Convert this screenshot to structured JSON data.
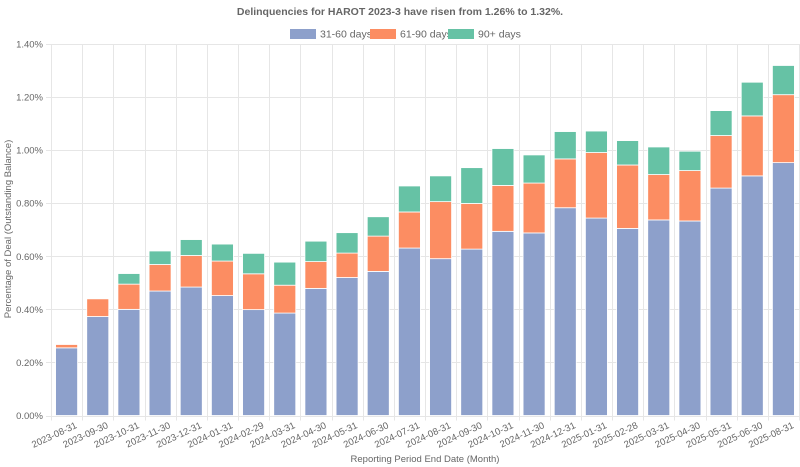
{
  "chart_data": {
    "type": "bar",
    "stacked": true,
    "title": "Delinquencies for HAROT 2023-3 have risen from 1.26% to 1.32%.",
    "xlabel": "Reporting Period End Date (Month)",
    "ylabel": "Percentage of Deal (Outstanding Balance)",
    "ylim": [
      0,
      1.4
    ],
    "yticks": [
      0,
      0.2,
      0.4,
      0.6,
      0.8,
      1.0,
      1.2,
      1.4
    ],
    "ytick_labels": [
      "0.00%",
      "0.20%",
      "0.40%",
      "0.60%",
      "0.80%",
      "1.00%",
      "1.20%",
      "1.40%"
    ],
    "grid": true,
    "legend_position": "top-center",
    "categories": [
      "2023-08-31",
      "2023-09-30",
      "2023-10-31",
      "2023-11-30",
      "2023-12-31",
      "2024-01-31",
      "2024-02-29",
      "2024-03-31",
      "2024-04-30",
      "2024-05-31",
      "2024-06-30",
      "2024-07-31",
      "2024-08-31",
      "2024-09-30",
      "2024-10-31",
      "2024-11-30",
      "2024-12-31",
      "2025-01-31",
      "2025-02-28",
      "2025-03-31",
      "2025-04-30",
      "2025-05-31",
      "2025-06-30",
      "2025-08-31"
    ],
    "series": [
      {
        "name": "31-60 days",
        "color": "#8da0cb",
        "values": [
          0.255,
          0.373,
          0.4,
          0.469,
          0.484,
          0.452,
          0.399,
          0.386,
          0.479,
          0.52,
          0.543,
          0.631,
          0.591,
          0.627,
          0.694,
          0.688,
          0.783,
          0.744,
          0.705,
          0.737,
          0.733,
          0.857,
          0.903,
          0.953
        ]
      },
      {
        "name": "61-90 days",
        "color": "#fc8d62",
        "values": [
          0.013,
          0.067,
          0.095,
          0.1,
          0.119,
          0.13,
          0.135,
          0.105,
          0.101,
          0.092,
          0.133,
          0.136,
          0.215,
          0.172,
          0.173,
          0.188,
          0.184,
          0.247,
          0.239,
          0.171,
          0.19,
          0.198,
          0.226,
          0.256
        ]
      },
      {
        "name": "90+ days",
        "color": "#66c2a5",
        "values": [
          0.002,
          0.001,
          0.04,
          0.051,
          0.06,
          0.064,
          0.077,
          0.087,
          0.077,
          0.077,
          0.073,
          0.098,
          0.097,
          0.135,
          0.139,
          0.106,
          0.103,
          0.081,
          0.092,
          0.104,
          0.073,
          0.094,
          0.127,
          0.11
        ]
      }
    ]
  }
}
